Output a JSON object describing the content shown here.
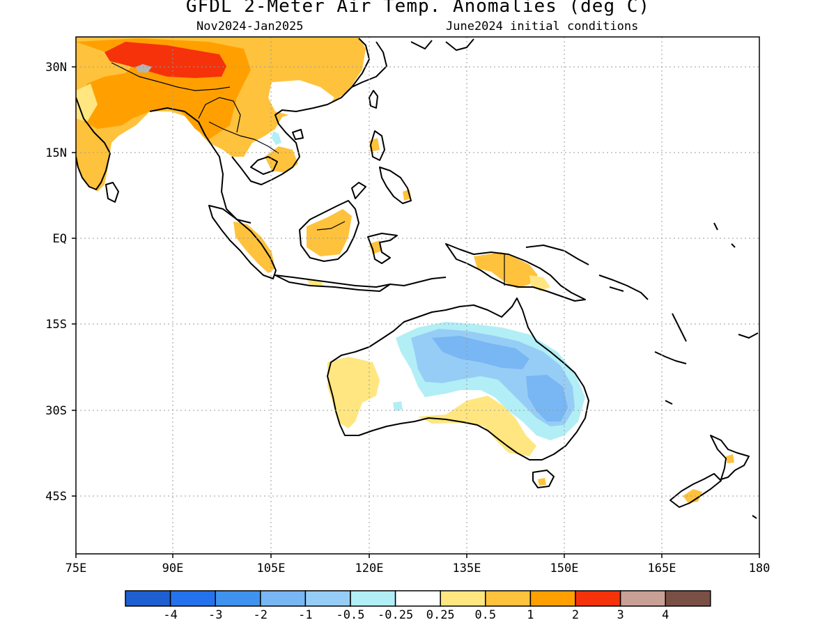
{
  "title": "GFDL 2-Meter Air Temp. Anomalies (deg C)",
  "subtitle_left": "Nov2024-Jan2025",
  "subtitle_right": "June2024 initial conditions",
  "lat_labels": [
    "30N",
    "15N",
    "EQ",
    "15S",
    "30S",
    "45S"
  ],
  "lon_labels": [
    "75E",
    "90E",
    "105E",
    "120E",
    "135E",
    "150E",
    "165E",
    "180"
  ],
  "colorbar": {
    "colors": [
      "#1e5fd2",
      "#2473ec",
      "#3f93ee",
      "#78b6f4",
      "#96cdf6",
      "#b2eef6",
      "#ffffff",
      "#ffe680",
      "#ffc23c",
      "#ffa000",
      "#f5320a",
      "#c8a096",
      "#7a5044"
    ],
    "labels": [
      "-4",
      "-3",
      "-2",
      "-1",
      "-0.5",
      "-0.25",
      "0.25",
      "0.5",
      "1",
      "2",
      "3",
      "4"
    ]
  },
  "palette": {
    "warm_light": "#ffe680",
    "warm_mid": "#ffc23c",
    "warm_strong": "#ffa000",
    "hot": "#f5320a",
    "cool_light": "#b2eef6",
    "cool_mid": "#96cdf6",
    "cool_strong": "#78b6f4",
    "grey_missing": "#b4b4b4"
  }
}
